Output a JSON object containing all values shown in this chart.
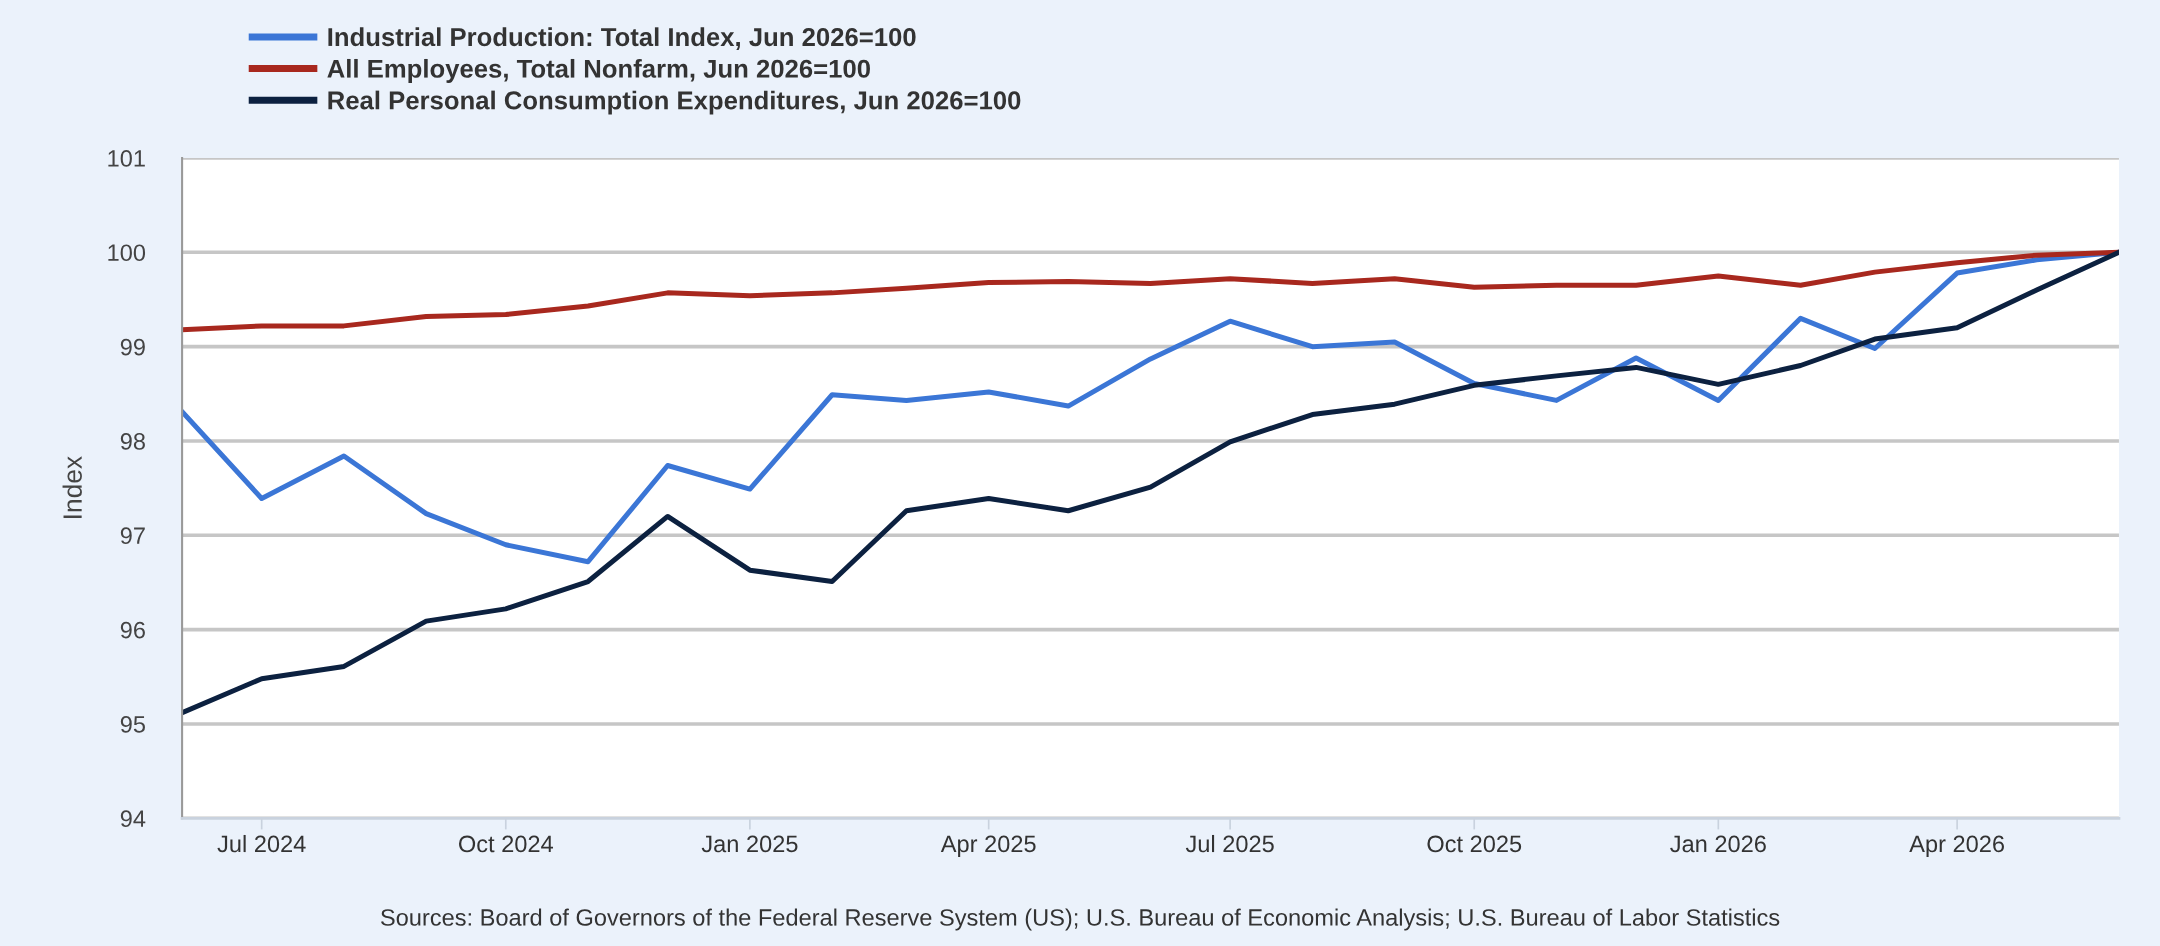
{
  "chart_data": {
    "type": "line",
    "x": [
      "2024-06",
      "2024-07",
      "2024-08",
      "2024-09",
      "2024-10",
      "2024-11",
      "2024-12",
      "2025-01",
      "2025-02",
      "2025-03",
      "2025-04",
      "2025-05",
      "2025-06",
      "2025-07",
      "2025-08",
      "2025-09",
      "2025-10",
      "2025-11",
      "2025-12",
      "2026-01",
      "2026-02",
      "2026-03",
      "2026-04",
      "2026-05",
      "2026-06"
    ],
    "series": [
      {
        "name": "Industrial Production: Total Index, Jun 2026=100",
        "color": "#3b76d6",
        "values": [
          98.31,
          97.39,
          97.84,
          97.23,
          96.9,
          96.72,
          97.74,
          97.49,
          98.49,
          98.43,
          98.52,
          98.37,
          98.87,
          99.27,
          99.0,
          99.05,
          98.61,
          98.43,
          98.88,
          98.43,
          99.3,
          98.98,
          99.78,
          99.92,
          100
        ]
      },
      {
        "name": "All Employees, Total Nonfarm, Jun 2026=100",
        "color": "#a8281e",
        "values": [
          99.18,
          99.22,
          99.22,
          99.32,
          99.34,
          99.43,
          99.57,
          99.54,
          99.57,
          99.62,
          99.68,
          99.69,
          99.67,
          99.72,
          99.67,
          99.72,
          99.63,
          99.65,
          99.65,
          99.75,
          99.65,
          99.79,
          99.89,
          99.97,
          100
        ]
      },
      {
        "name": "Real Personal Consumption Expenditures, Jun 2026=100",
        "color": "#0c2140",
        "values": [
          95.12,
          95.48,
          95.61,
          96.09,
          96.22,
          96.51,
          97.2,
          96.63,
          96.51,
          97.26,
          97.39,
          97.26,
          97.51,
          97.99,
          98.28,
          98.39,
          98.59,
          98.69,
          98.78,
          98.6,
          98.8,
          99.08,
          99.2,
          99.6,
          100
        ]
      }
    ],
    "ylabel": "Index",
    "xlim": [
      "2024-06",
      "2026-06"
    ],
    "xticks": [
      {
        "value": "2024-07",
        "label": "Jul 2024"
      },
      {
        "value": "2024-10",
        "label": "Oct 2024"
      },
      {
        "value": "2025-01",
        "label": "Jan 2025"
      },
      {
        "value": "2025-04",
        "label": "Apr 2025"
      },
      {
        "value": "2025-07",
        "label": "Jul 2025"
      },
      {
        "value": "2025-10",
        "label": "Oct 2025"
      },
      {
        "value": "2026-01",
        "label": "Jan 2026"
      },
      {
        "value": "2026-04",
        "label": "Apr 2026"
      }
    ],
    "ylim": [
      94,
      101
    ],
    "yticks": [
      94,
      95,
      96,
      97,
      98,
      99,
      100,
      101
    ],
    "grid": "y",
    "legend": "top left",
    "line_style": "solid",
    "annotations": [
      "Sources: Board of Governors of the Federal Reserve System (US); U.S. Bureau of Economic Analysis; U.S. Bureau of Labor Statistics"
    ]
  }
}
